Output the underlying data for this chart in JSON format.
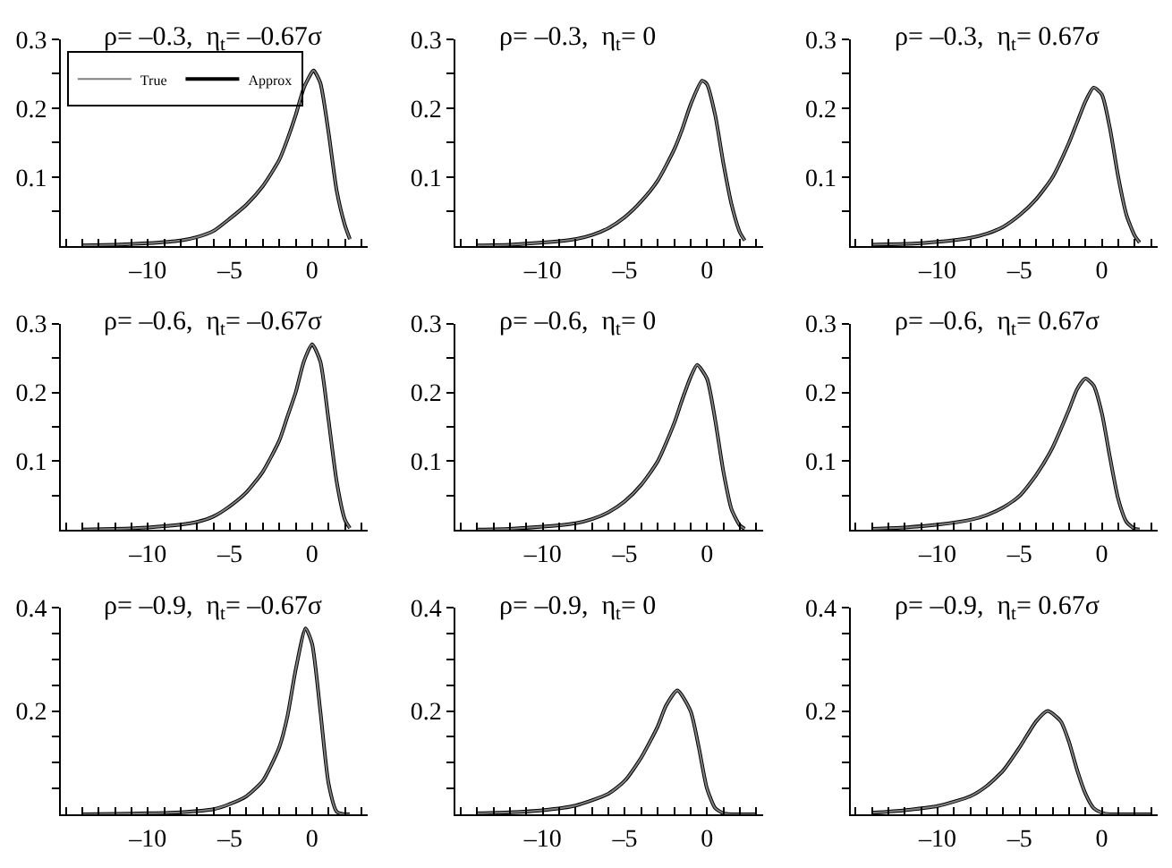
{
  "chart_data": [
    {
      "type": "line",
      "title": "ρ= –0.3,  η$_{t}$= –0.67σ",
      "legend": "top left",
      "grid": false,
      "xlim": [
        -15.3,
        3.4
      ],
      "ylim": [
        0,
        0.3
      ],
      "xticks": [
        {
          "value": -15,
          "label": null
        },
        {
          "value": -14,
          "label": null
        },
        {
          "value": -13,
          "label": null
        },
        {
          "value": -12,
          "label": null
        },
        {
          "value": -11,
          "label": null
        },
        {
          "value": -10,
          "label": "–10"
        },
        {
          "value": -9,
          "label": null
        },
        {
          "value": -8,
          "label": null
        },
        {
          "value": -7,
          "label": null
        },
        {
          "value": -6,
          "label": null
        },
        {
          "value": -5,
          "label": "–5"
        },
        {
          "value": -4,
          "label": null
        },
        {
          "value": -3,
          "label": null
        },
        {
          "value": -2,
          "label": null
        },
        {
          "value": -1,
          "label": null
        },
        0,
        {
          "value": 1,
          "label": null
        },
        {
          "value": 2,
          "label": null
        },
        {
          "value": 3,
          "label": null
        }
      ],
      "yticks": [
        {
          "value": 0.05,
          "label": null
        },
        0.1,
        {
          "value": 0.15,
          "label": null
        },
        0.2,
        {
          "value": 0.25,
          "label": null
        },
        0.3
      ],
      "series": [
        {
          "name": "True",
          "color": "#808080",
          "x": [
            -14,
            -12,
            -10,
            -8,
            -7,
            -6,
            -5,
            -4,
            -3,
            -2,
            -1.5,
            -1,
            -0.5,
            0,
            0.1,
            0.5,
            1,
            1.5,
            2,
            2.3
          ],
          "values": [
            0.001,
            0.002,
            0.004,
            0.008,
            0.013,
            0.022,
            0.04,
            0.06,
            0.087,
            0.125,
            0.155,
            0.19,
            0.23,
            0.253,
            0.255,
            0.237,
            0.165,
            0.08,
            0.03,
            0.01
          ]
        },
        {
          "name": "Approx",
          "color": "#000000",
          "x": [
            -14,
            -12,
            -10,
            -8,
            -7,
            -6,
            -5,
            -4,
            -3,
            -2,
            -1.5,
            -1,
            -0.5,
            0,
            0.1,
            0.5,
            1,
            1.5,
            2,
            2.3
          ],
          "values": [
            0.001,
            0.002,
            0.004,
            0.008,
            0.013,
            0.022,
            0.04,
            0.06,
            0.087,
            0.125,
            0.155,
            0.19,
            0.23,
            0.253,
            0.255,
            0.237,
            0.165,
            0.08,
            0.03,
            0.01
          ]
        }
      ]
    },
    {
      "type": "line",
      "title": "ρ= –0.3,  η$_{t}$= 0",
      "grid": false,
      "xlim": [
        -15.3,
        3.4
      ],
      "ylim": [
        0,
        0.3
      ],
      "xticks": [
        {
          "value": -15,
          "label": null
        },
        {
          "value": -14,
          "label": null
        },
        {
          "value": -13,
          "label": null
        },
        {
          "value": -12,
          "label": null
        },
        {
          "value": -11,
          "label": null
        },
        {
          "value": -10,
          "label": "–10"
        },
        {
          "value": -9,
          "label": null
        },
        {
          "value": -8,
          "label": null
        },
        {
          "value": -7,
          "label": null
        },
        {
          "value": -6,
          "label": null
        },
        {
          "value": -5,
          "label": "–5"
        },
        {
          "value": -4,
          "label": null
        },
        {
          "value": -3,
          "label": null
        },
        {
          "value": -2,
          "label": null
        },
        {
          "value": -1,
          "label": null
        },
        0,
        {
          "value": 1,
          "label": null
        },
        {
          "value": 2,
          "label": null
        },
        {
          "value": 3,
          "label": null
        }
      ],
      "yticks": [
        {
          "value": 0.05,
          "label": null
        },
        0.1,
        {
          "value": 0.15,
          "label": null
        },
        0.2,
        {
          "value": 0.25,
          "label": null
        },
        0.3
      ],
      "series": [
        {
          "color": "#808080",
          "x": [
            -14,
            -12,
            -10,
            -8,
            -7,
            -6,
            -5,
            -4,
            -3,
            -2,
            -1.5,
            -1,
            -0.3,
            0,
            0.5,
            1,
            1.5,
            2,
            2.3
          ],
          "values": [
            0.001,
            0.002,
            0.005,
            0.01,
            0.016,
            0.026,
            0.042,
            0.065,
            0.095,
            0.14,
            0.17,
            0.205,
            0.24,
            0.235,
            0.19,
            0.12,
            0.06,
            0.02,
            0.008
          ]
        },
        {
          "color": "#000000",
          "x": [
            -14,
            -12,
            -10,
            -8,
            -7,
            -6,
            -5,
            -4,
            -3,
            -2,
            -1.5,
            -1,
            -0.3,
            0,
            0.5,
            1,
            1.5,
            2,
            2.3
          ],
          "values": [
            0.001,
            0.002,
            0.005,
            0.01,
            0.016,
            0.026,
            0.042,
            0.065,
            0.095,
            0.14,
            0.17,
            0.205,
            0.24,
            0.235,
            0.19,
            0.12,
            0.06,
            0.02,
            0.008
          ]
        }
      ]
    },
    {
      "type": "line",
      "title": "ρ= –0.3,  η$_{t}$= 0.67σ",
      "grid": false,
      "xlim": [
        -15.3,
        3.4
      ],
      "ylim": [
        0,
        0.3
      ],
      "xticks": [
        {
          "value": -15,
          "label": null
        },
        {
          "value": -14,
          "label": null
        },
        {
          "value": -13,
          "label": null
        },
        {
          "value": -12,
          "label": null
        },
        {
          "value": -11,
          "label": null
        },
        {
          "value": -10,
          "label": "–10"
        },
        {
          "value": -9,
          "label": null
        },
        {
          "value": -8,
          "label": null
        },
        {
          "value": -7,
          "label": null
        },
        {
          "value": -6,
          "label": null
        },
        {
          "value": -5,
          "label": "–5"
        },
        {
          "value": -4,
          "label": null
        },
        {
          "value": -3,
          "label": null
        },
        {
          "value": -2,
          "label": null
        },
        {
          "value": -1,
          "label": null
        },
        0,
        {
          "value": 1,
          "label": null
        },
        {
          "value": 2,
          "label": null
        },
        {
          "value": 3,
          "label": null
        }
      ],
      "yticks": [
        {
          "value": 0.05,
          "label": null
        },
        0.1,
        {
          "value": 0.15,
          "label": null
        },
        0.2,
        {
          "value": 0.25,
          "label": null
        },
        0.3
      ],
      "series": [
        {
          "color": "#808080",
          "x": [
            -14,
            -12,
            -10,
            -8,
            -7,
            -6,
            -5,
            -4,
            -3,
            -2,
            -1.5,
            -1,
            -0.5,
            0,
            0.5,
            1,
            1.5,
            2,
            2.3
          ],
          "values": [
            0.002,
            0.003,
            0.006,
            0.012,
            0.018,
            0.028,
            0.045,
            0.068,
            0.1,
            0.15,
            0.18,
            0.21,
            0.23,
            0.22,
            0.17,
            0.1,
            0.045,
            0.015,
            0.005
          ]
        },
        {
          "color": "#000000",
          "x": [
            -14,
            -12,
            -10,
            -8,
            -7,
            -6,
            -5,
            -4,
            -3,
            -2,
            -1.5,
            -1,
            -0.5,
            0,
            0.5,
            1,
            1.5,
            2,
            2.3
          ],
          "values": [
            0.002,
            0.003,
            0.006,
            0.012,
            0.018,
            0.028,
            0.045,
            0.068,
            0.1,
            0.15,
            0.18,
            0.21,
            0.23,
            0.22,
            0.17,
            0.1,
            0.045,
            0.015,
            0.005
          ]
        }
      ]
    },
    {
      "type": "line",
      "title": "ρ= –0.6,  η$_{t}$= –0.67σ",
      "grid": false,
      "xlim": [
        -15.3,
        3.4
      ],
      "ylim": [
        0,
        0.3
      ],
      "xticks": [
        {
          "value": -15,
          "label": null
        },
        {
          "value": -14,
          "label": null
        },
        {
          "value": -13,
          "label": null
        },
        {
          "value": -12,
          "label": null
        },
        {
          "value": -11,
          "label": null
        },
        {
          "value": -10,
          "label": "–10"
        },
        {
          "value": -9,
          "label": null
        },
        {
          "value": -8,
          "label": null
        },
        {
          "value": -7,
          "label": null
        },
        {
          "value": -6,
          "label": null
        },
        {
          "value": -5,
          "label": "–5"
        },
        {
          "value": -4,
          "label": null
        },
        {
          "value": -3,
          "label": null
        },
        {
          "value": -2,
          "label": null
        },
        {
          "value": -1,
          "label": null
        },
        0,
        {
          "value": 1,
          "label": null
        },
        {
          "value": 2,
          "label": null
        },
        {
          "value": 3,
          "label": null
        }
      ],
      "yticks": [
        {
          "value": 0.05,
          "label": null
        },
        0.1,
        {
          "value": 0.15,
          "label": null
        },
        0.2,
        {
          "value": 0.25,
          "label": null
        },
        0.3
      ],
      "series": [
        {
          "color": "#808080",
          "x": [
            -14,
            -12,
            -10,
            -8,
            -7,
            -6,
            -5,
            -4,
            -3,
            -2,
            -1.5,
            -1,
            -0.5,
            0,
            0.5,
            1,
            1.5,
            2,
            2.3
          ],
          "values": [
            0.001,
            0.002,
            0.004,
            0.008,
            0.012,
            0.02,
            0.035,
            0.055,
            0.085,
            0.13,
            0.165,
            0.2,
            0.245,
            0.27,
            0.245,
            0.16,
            0.07,
            0.015,
            0.003
          ]
        },
        {
          "color": "#000000",
          "x": [
            -14,
            -12,
            -10,
            -8,
            -7,
            -6,
            -5,
            -4,
            -3,
            -2,
            -1.5,
            -1,
            -0.5,
            0,
            0.5,
            1,
            1.5,
            2,
            2.3
          ],
          "values": [
            0.001,
            0.002,
            0.004,
            0.008,
            0.012,
            0.02,
            0.035,
            0.055,
            0.085,
            0.13,
            0.165,
            0.2,
            0.245,
            0.27,
            0.245,
            0.16,
            0.07,
            0.015,
            0.003
          ]
        }
      ]
    },
    {
      "type": "line",
      "title": "ρ= –0.6,  η$_{t}$= 0",
      "grid": false,
      "xlim": [
        -15.3,
        3.4
      ],
      "ylim": [
        0,
        0.3
      ],
      "xticks": [
        {
          "value": -15,
          "label": null
        },
        {
          "value": -14,
          "label": null
        },
        {
          "value": -13,
          "label": null
        },
        {
          "value": -12,
          "label": null
        },
        {
          "value": -11,
          "label": null
        },
        {
          "value": -10,
          "label": "–10"
        },
        {
          "value": -9,
          "label": null
        },
        {
          "value": -8,
          "label": null
        },
        {
          "value": -7,
          "label": null
        },
        {
          "value": -6,
          "label": null
        },
        {
          "value": -5,
          "label": "–5"
        },
        {
          "value": -4,
          "label": null
        },
        {
          "value": -3,
          "label": null
        },
        {
          "value": -2,
          "label": null
        },
        {
          "value": -1,
          "label": null
        },
        0,
        {
          "value": 1,
          "label": null
        },
        {
          "value": 2,
          "label": null
        },
        {
          "value": 3,
          "label": null
        }
      ],
      "yticks": [
        {
          "value": 0.05,
          "label": null
        },
        0.1,
        {
          "value": 0.15,
          "label": null
        },
        0.2,
        {
          "value": 0.25,
          "label": null
        },
        0.3
      ],
      "series": [
        {
          "color": "#808080",
          "x": [
            -14,
            -12,
            -10,
            -8,
            -7,
            -6,
            -5,
            -4,
            -3,
            -2,
            -1.5,
            -1,
            -0.6,
            0,
            0.5,
            1,
            1.5,
            2,
            2.3
          ],
          "values": [
            0.001,
            0.002,
            0.005,
            0.01,
            0.016,
            0.026,
            0.042,
            0.066,
            0.1,
            0.155,
            0.19,
            0.222,
            0.24,
            0.22,
            0.16,
            0.085,
            0.03,
            0.007,
            0.002
          ]
        },
        {
          "color": "#000000",
          "x": [
            -14,
            -12,
            -10,
            -8,
            -7,
            -6,
            -5,
            -4,
            -3,
            -2,
            -1.5,
            -1,
            -0.6,
            0,
            0.5,
            1,
            1.5,
            2,
            2.3
          ],
          "values": [
            0.001,
            0.002,
            0.005,
            0.01,
            0.016,
            0.026,
            0.042,
            0.066,
            0.1,
            0.155,
            0.19,
            0.222,
            0.24,
            0.22,
            0.16,
            0.085,
            0.03,
            0.007,
            0.002
          ]
        }
      ]
    },
    {
      "type": "line",
      "title": "ρ= –0.6,  η$_{t}$= 0.67σ",
      "grid": false,
      "xlim": [
        -15.3,
        3.4
      ],
      "ylim": [
        0,
        0.3
      ],
      "xticks": [
        {
          "value": -15,
          "label": null
        },
        {
          "value": -14,
          "label": null
        },
        {
          "value": -13,
          "label": null
        },
        {
          "value": -12,
          "label": null
        },
        {
          "value": -11,
          "label": null
        },
        {
          "value": -10,
          "label": "–10"
        },
        {
          "value": -9,
          "label": null
        },
        {
          "value": -8,
          "label": null
        },
        {
          "value": -7,
          "label": null
        },
        {
          "value": -6,
          "label": null
        },
        {
          "value": -5,
          "label": "–5"
        },
        {
          "value": -4,
          "label": null
        },
        {
          "value": -3,
          "label": null
        },
        {
          "value": -2,
          "label": null
        },
        {
          "value": -1,
          "label": null
        },
        0,
        {
          "value": 1,
          "label": null
        },
        {
          "value": 2,
          "label": null
        },
        {
          "value": 3,
          "label": null
        }
      ],
      "yticks": [
        {
          "value": 0.05,
          "label": null
        },
        0.1,
        {
          "value": 0.15,
          "label": null
        },
        0.2,
        {
          "value": 0.25,
          "label": null
        },
        0.3
      ],
      "series": [
        {
          "color": "#808080",
          "x": [
            -14,
            -12,
            -10,
            -8,
            -7,
            -6,
            -5,
            -4,
            -3,
            -2,
            -1.5,
            -1,
            -0.5,
            0,
            0.5,
            1,
            1.5,
            2,
            2.3
          ],
          "values": [
            0.002,
            0.004,
            0.008,
            0.015,
            0.022,
            0.033,
            0.05,
            0.08,
            0.12,
            0.175,
            0.205,
            0.22,
            0.21,
            0.17,
            0.105,
            0.045,
            0.012,
            0.002,
            0.001
          ]
        },
        {
          "color": "#000000",
          "x": [
            -14,
            -12,
            -10,
            -8,
            -7,
            -6,
            -5,
            -4,
            -3,
            -2,
            -1.5,
            -1,
            -0.5,
            0,
            0.5,
            1,
            1.5,
            2,
            2.3
          ],
          "values": [
            0.002,
            0.004,
            0.008,
            0.015,
            0.022,
            0.033,
            0.05,
            0.08,
            0.12,
            0.175,
            0.205,
            0.22,
            0.21,
            0.17,
            0.105,
            0.045,
            0.012,
            0.002,
            0.001
          ]
        }
      ]
    },
    {
      "type": "line",
      "title": "ρ= –0.9,  η$_{t}$= –0.67σ",
      "grid": false,
      "xlim": [
        -15.3,
        3.4
      ],
      "ylim": [
        0,
        0.4
      ],
      "xticks": [
        {
          "value": -15,
          "label": null
        },
        {
          "value": -14,
          "label": null
        },
        {
          "value": -13,
          "label": null
        },
        {
          "value": -12,
          "label": null
        },
        {
          "value": -11,
          "label": null
        },
        {
          "value": -10,
          "label": "–10"
        },
        {
          "value": -9,
          "label": null
        },
        {
          "value": -8,
          "label": null
        },
        {
          "value": -7,
          "label": null
        },
        {
          "value": -6,
          "label": null
        },
        {
          "value": -5,
          "label": "–5"
        },
        {
          "value": -4,
          "label": null
        },
        {
          "value": -3,
          "label": null
        },
        {
          "value": -2,
          "label": null
        },
        {
          "value": -1,
          "label": null
        },
        0,
        {
          "value": 1,
          "label": null
        },
        {
          "value": 2,
          "label": null
        },
        {
          "value": 3,
          "label": null
        }
      ],
      "yticks": [
        {
          "value": 0.05,
          "label": null
        },
        {
          "value": 0.1,
          "label": null
        },
        {
          "value": 0.15,
          "label": null
        },
        0.2,
        {
          "value": 0.25,
          "label": null
        },
        {
          "value": 0.3,
          "label": null
        },
        {
          "value": 0.35,
          "label": null
        },
        0.4
      ],
      "series": [
        {
          "color": "#808080",
          "x": [
            -14,
            -12,
            -10,
            -8,
            -6,
            -5,
            -4,
            -3,
            -2,
            -1.5,
            -1,
            -0.4,
            0,
            0.5,
            1,
            1.5,
            2,
            2.3
          ],
          "values": [
            0.0,
            0.001,
            0.002,
            0.004,
            0.01,
            0.02,
            0.035,
            0.065,
            0.13,
            0.19,
            0.28,
            0.36,
            0.33,
            0.2,
            0.06,
            0.005,
            0,
            0
          ]
        },
        {
          "color": "#000000",
          "x": [
            -14,
            -12,
            -10,
            -8,
            -6,
            -5,
            -4,
            -3,
            -2,
            -1.5,
            -1,
            -0.4,
            0,
            0.5,
            1,
            1.5,
            2,
            2.3
          ],
          "values": [
            0.0,
            0.001,
            0.002,
            0.004,
            0.01,
            0.02,
            0.035,
            0.065,
            0.13,
            0.19,
            0.28,
            0.36,
            0.33,
            0.2,
            0.06,
            0.005,
            0,
            0
          ]
        }
      ]
    },
    {
      "type": "line",
      "title": "ρ= –0.9,  η$_{t}$= 0",
      "grid": false,
      "xlim": [
        -15.3,
        3.4
      ],
      "ylim": [
        0,
        0.4
      ],
      "xticks": [
        {
          "value": -15,
          "label": null
        },
        {
          "value": -14,
          "label": null
        },
        {
          "value": -13,
          "label": null
        },
        {
          "value": -12,
          "label": null
        },
        {
          "value": -11,
          "label": null
        },
        {
          "value": -10,
          "label": "–10"
        },
        {
          "value": -9,
          "label": null
        },
        {
          "value": -8,
          "label": null
        },
        {
          "value": -7,
          "label": null
        },
        {
          "value": -6,
          "label": null
        },
        {
          "value": -5,
          "label": "–5"
        },
        {
          "value": -4,
          "label": null
        },
        {
          "value": -3,
          "label": null
        },
        {
          "value": -2,
          "label": null
        },
        {
          "value": -1,
          "label": null
        },
        0,
        {
          "value": 1,
          "label": null
        },
        {
          "value": 2,
          "label": null
        },
        {
          "value": 3,
          "label": null
        }
      ],
      "yticks": [
        {
          "value": 0.05,
          "label": null
        },
        {
          "value": 0.1,
          "label": null
        },
        {
          "value": 0.15,
          "label": null
        },
        0.2,
        {
          "value": 0.25,
          "label": null
        },
        {
          "value": 0.3,
          "label": null
        },
        {
          "value": 0.35,
          "label": null
        },
        0.4
      ],
      "series": [
        {
          "color": "#808080",
          "x": [
            -14,
            -12,
            -10,
            -8,
            -6,
            -5,
            -4,
            -3,
            -2.5,
            -1.8,
            -1,
            -0.5,
            0,
            0.5,
            1,
            1.5,
            2,
            3
          ],
          "values": [
            0.002,
            0.004,
            0.008,
            0.017,
            0.04,
            0.065,
            0.11,
            0.17,
            0.21,
            0.24,
            0.2,
            0.13,
            0.05,
            0.012,
            0.002,
            0,
            0,
            0
          ]
        },
        {
          "color": "#000000",
          "x": [
            -14,
            -12,
            -10,
            -8,
            -6,
            -5,
            -4,
            -3,
            -2.5,
            -1.8,
            -1,
            -0.5,
            0,
            0.5,
            1,
            1.5,
            2,
            3
          ],
          "values": [
            0.002,
            0.004,
            0.008,
            0.017,
            0.04,
            0.065,
            0.11,
            0.17,
            0.21,
            0.24,
            0.2,
            0.13,
            0.05,
            0.012,
            0.002,
            0,
            0,
            0
          ]
        }
      ]
    },
    {
      "type": "line",
      "title": "ρ= –0.9,  η$_{t}$= 0.67σ",
      "grid": false,
      "xlim": [
        -15.3,
        3.4
      ],
      "ylim": [
        0,
        0.4
      ],
      "xticks": [
        {
          "value": -15,
          "label": null
        },
        {
          "value": -14,
          "label": null
        },
        {
          "value": -13,
          "label": null
        },
        {
          "value": -12,
          "label": null
        },
        {
          "value": -11,
          "label": null
        },
        {
          "value": -10,
          "label": "–10"
        },
        {
          "value": -9,
          "label": null
        },
        {
          "value": -8,
          "label": null
        },
        {
          "value": -7,
          "label": null
        },
        {
          "value": -6,
          "label": null
        },
        {
          "value": -5,
          "label": "–5"
        },
        {
          "value": -4,
          "label": null
        },
        {
          "value": -3,
          "label": null
        },
        {
          "value": -2,
          "label": null
        },
        {
          "value": -1,
          "label": null
        },
        0,
        {
          "value": 1,
          "label": null
        },
        {
          "value": 2,
          "label": null
        },
        {
          "value": 3,
          "label": null
        }
      ],
      "yticks": [
        {
          "value": 0.05,
          "label": null
        },
        {
          "value": 0.1,
          "label": null
        },
        {
          "value": 0.15,
          "label": null
        },
        0.2,
        {
          "value": 0.25,
          "label": null
        },
        {
          "value": 0.3,
          "label": null
        },
        {
          "value": 0.35,
          "label": null
        },
        0.4
      ],
      "series": [
        {
          "color": "#808080",
          "x": [
            -14,
            -12,
            -10,
            -8,
            -7,
            -6,
            -5,
            -4,
            -3.3,
            -2.5,
            -2,
            -1.5,
            -1,
            -0.5,
            0,
            0.5,
            1,
            2,
            3
          ],
          "values": [
            0.003,
            0.008,
            0.016,
            0.035,
            0.055,
            0.085,
            0.13,
            0.18,
            0.2,
            0.18,
            0.14,
            0.085,
            0.04,
            0.012,
            0.003,
            0,
            0,
            0,
            0
          ]
        },
        {
          "color": "#000000",
          "x": [
            -14,
            -12,
            -10,
            -8,
            -7,
            -6,
            -5,
            -4,
            -3.3,
            -2.5,
            -2,
            -1.5,
            -1,
            -0.5,
            0,
            0.5,
            1,
            2,
            3
          ],
          "values": [
            0.003,
            0.008,
            0.016,
            0.035,
            0.055,
            0.085,
            0.13,
            0.18,
            0.2,
            0.18,
            0.14,
            0.085,
            0.04,
            0.012,
            0.003,
            0,
            0,
            0,
            0
          ]
        }
      ]
    }
  ]
}
